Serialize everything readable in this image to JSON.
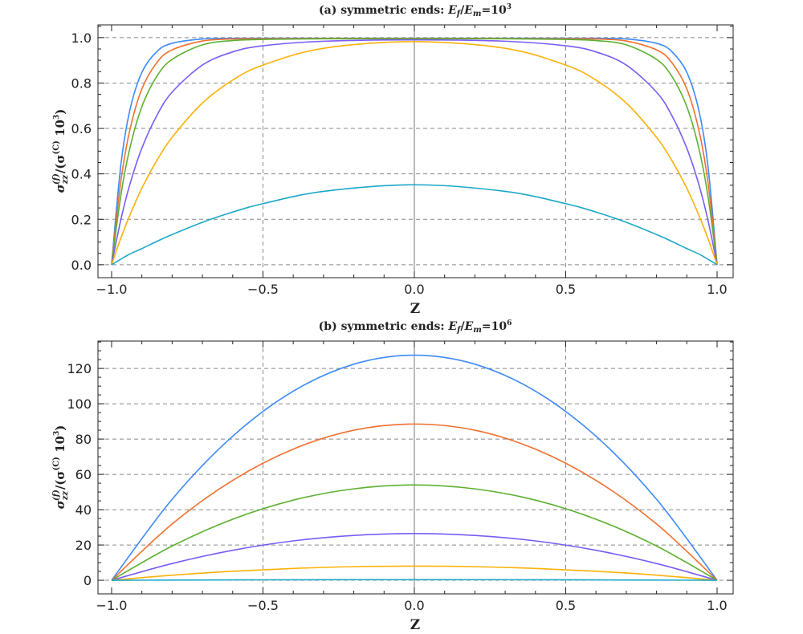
{
  "chart_data": [
    {
      "type": "line",
      "title": "(a) symmetric ends: E_f/E_m=10^3",
      "title_parts": {
        "prefix": "(a) symmetric ends: ",
        "num": "E",
        "num_sub": "f",
        "den": "E",
        "den_sub": "m",
        "eq": "=10",
        "exp": "3"
      },
      "xlabel": "Z",
      "ylabel": "σ_zz^(f)/(σ^(C) 10^3)",
      "ylabel_parts": {
        "sigma": "σ",
        "sub": "zz",
        "sup": "(f)",
        "rest": "/(σ",
        "sup2": "(C)",
        "rest2": " 10",
        "exp": "3",
        "close": ")"
      },
      "xlim": [
        -1.045,
        1.053
      ],
      "ylim": [
        -0.057,
        1.056
      ],
      "xticks": [
        -1.0,
        -0.5,
        0.0,
        0.5,
        1.0
      ],
      "xtick_labels": [
        "-1.0",
        "-0.5",
        "0.0",
        "0.5",
        "1.0"
      ],
      "yticks": [
        0.0,
        0.2,
        0.4,
        0.6,
        0.8,
        1.0
      ],
      "ytick_labels": [
        "0.0",
        "0.2",
        "0.4",
        "0.6",
        "0.8",
        "1.0"
      ],
      "grid": "dashed",
      "x": [
        -1,
        -0.97,
        -0.94,
        -0.9,
        -0.85,
        -0.8,
        -0.7,
        -0.6,
        -0.5,
        -0.3,
        0,
        0.3,
        0.5,
        0.6,
        0.7,
        0.8,
        0.85,
        0.9,
        0.94,
        0.97,
        1
      ],
      "series": [
        {
          "color": "#3d8af7",
          "values": [
            0,
            0.432,
            0.678,
            0.847,
            0.939,
            0.975,
            0.994,
            0.997,
            0.997,
            0.997,
            0.997,
            0.997,
            0.997,
            0.997,
            0.994,
            0.975,
            0.939,
            0.847,
            0.678,
            0.432,
            0
          ]
        },
        {
          "color": "#f0702e",
          "values": [
            0,
            0.361,
            0.591,
            0.774,
            0.891,
            0.946,
            0.985,
            0.994,
            0.995,
            0.996,
            0.996,
            0.996,
            0.995,
            0.994,
            0.985,
            0.946,
            0.891,
            0.774,
            0.591,
            0.361,
            0
          ]
        },
        {
          "color": "#5cb030",
          "values": [
            0,
            0.3,
            0.511,
            0.696,
            0.831,
            0.904,
            0.968,
            0.987,
            0.992,
            0.995,
            0.995,
            0.995,
            0.992,
            0.987,
            0.968,
            0.904,
            0.831,
            0.696,
            0.511,
            0.3,
            0
          ]
        },
        {
          "color": "#7b5cf5",
          "values": [
            0,
            0.195,
            0.352,
            0.513,
            0.658,
            0.76,
            0.879,
            0.937,
            0.964,
            0.984,
            0.99,
            0.984,
            0.964,
            0.937,
            0.879,
            0.76,
            0.658,
            0.513,
            0.352,
            0.195,
            0
          ]
        },
        {
          "color": "#fcb10a",
          "values": [
            0,
            0.115,
            0.217,
            0.337,
            0.46,
            0.561,
            0.712,
            0.813,
            0.879,
            0.953,
            0.982,
            0.953,
            0.879,
            0.813,
            0.712,
            0.561,
            0.46,
            0.337,
            0.217,
            0.115,
            0
          ]
        },
        {
          "color": "#1ba8c9",
          "values": [
            0,
            0.024,
            0.047,
            0.071,
            0.103,
            0.133,
            0.187,
            0.232,
            0.269,
            0.323,
            0.352,
            0.323,
            0.269,
            0.232,
            0.187,
            0.133,
            0.103,
            0.071,
            0.047,
            0.024,
            0
          ]
        }
      ]
    },
    {
      "type": "line",
      "title": "(b) symmetric ends: E_f/E_m=10^6",
      "title_parts": {
        "prefix": "(b) symmetric ends: ",
        "num": "E",
        "num_sub": "f",
        "den": "E",
        "den_sub": "m",
        "eq": "=10",
        "exp": "6"
      },
      "xlabel": "Z",
      "ylabel": "σ_zz^(f)/(σ^(C) 10^3)",
      "ylabel_parts": {
        "sigma": "σ",
        "sub": "zz",
        "sup": "(f)",
        "rest": "/(σ",
        "sup2": "(C)",
        "rest2": " 10",
        "exp": "3",
        "close": ")"
      },
      "xlim": [
        -1.045,
        1.053
      ],
      "ylim": [
        -7.7,
        135.5
      ],
      "xticks": [
        -1.0,
        -0.5,
        0.0,
        0.5,
        1.0
      ],
      "xtick_labels": [
        "-1.0",
        "-0.5",
        "0.0",
        "0.5",
        "1.0"
      ],
      "yticks": [
        0,
        20,
        40,
        60,
        80,
        100,
        120
      ],
      "ytick_labels": [
        "0",
        "20",
        "40",
        "60",
        "80",
        "100",
        "120"
      ],
      "grid": "dashed",
      "x": [
        -1,
        -0.8,
        -0.6,
        -0.4,
        -0.2,
        0,
        0.2,
        0.4,
        0.6,
        0.8,
        1
      ],
      "series": [
        {
          "color": "#3d8af7",
          "values": [
            0,
            45.9,
            81.6,
            107.1,
            122.4,
            127.5,
            122.4,
            107.1,
            81.6,
            45.9,
            0
          ]
        },
        {
          "color": "#f0702e",
          "values": [
            0,
            31.9,
            56.6,
            74.3,
            85.0,
            88.5,
            85.0,
            74.3,
            56.6,
            31.9,
            0
          ]
        },
        {
          "color": "#5cb030",
          "values": [
            0,
            19.4,
            34.6,
            45.4,
            51.8,
            54.0,
            51.8,
            45.4,
            34.6,
            19.4,
            0
          ]
        },
        {
          "color": "#7b5cf5",
          "values": [
            0,
            9.5,
            17.0,
            22.3,
            25.4,
            26.5,
            25.4,
            22.3,
            17.0,
            9.5,
            0
          ]
        },
        {
          "color": "#fcb10a",
          "values": [
            0,
            2.9,
            5.1,
            6.7,
            7.7,
            8.0,
            7.7,
            6.7,
            5.1,
            2.9,
            0
          ]
        },
        {
          "color": "#1ba8c9",
          "values": [
            0,
            0.13,
            0.22,
            0.29,
            0.34,
            0.35,
            0.34,
            0.29,
            0.22,
            0.13,
            0
          ]
        }
      ]
    }
  ]
}
